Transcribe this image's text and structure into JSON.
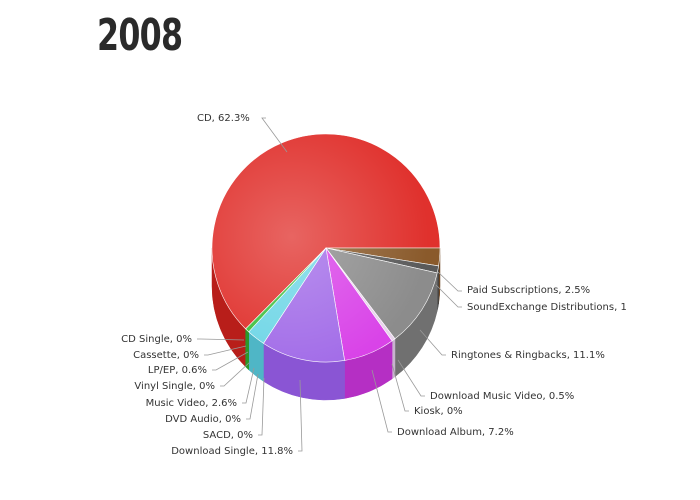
{
  "page": {
    "year_title": "2008"
  },
  "chart_data": {
    "type": "pie",
    "title": "",
    "slices": [
      {
        "label": "CD, 62.3%",
        "value": 62.3,
        "color": "#e0312d",
        "side": "#b81e1a"
      },
      {
        "label": "Paid Subscriptions, 2.5%",
        "value": 2.5,
        "color": "#8a5a2b",
        "side": "#6b4420"
      },
      {
        "label": "SoundExchange Distributions, 1",
        "value": 1.0,
        "color": "#5a5a5a",
        "side": "#444444"
      },
      {
        "label": "Ringtones & Ringbacks, 11.1%",
        "value": 11.1,
        "color": "#8c8c8c",
        "side": "#707070"
      },
      {
        "label": "Download Music Video, 0.5%",
        "value": 0.5,
        "color": "#e8d3ec",
        "side": "#c9b3cf"
      },
      {
        "label": "Kiosk, 0%",
        "value": 0.0,
        "color": "#eeeeee",
        "side": "#dddddd"
      },
      {
        "label": "Download Album, 7.2%",
        "value": 7.2,
        "color": "#d943e8",
        "side": "#b52fc4"
      },
      {
        "label": "Download Single, 11.8%",
        "value": 11.8,
        "color": "#a26ce8",
        "side": "#8a55d4"
      },
      {
        "label": "SACD, 0%",
        "value": 0.0,
        "color": "#bbbbbb",
        "side": "#999999"
      },
      {
        "label": "DVD Audio, 0%",
        "value": 0.0,
        "color": "#bbbbbb",
        "side": "#999999"
      },
      {
        "label": "Music Video, 2.6%",
        "value": 2.6,
        "color": "#6fd6e6",
        "side": "#4fb6c6"
      },
      {
        "label": "Vinyl Single, 0%",
        "value": 0.0,
        "color": "#bbbbbb",
        "side": "#999999"
      },
      {
        "label": "LP/EP, 0.6%",
        "value": 0.6,
        "color": "#3fbf3f",
        "side": "#2a9a2a"
      },
      {
        "label": "Cassette, 0%",
        "value": 0.0,
        "color": "#bbbbbb",
        "side": "#999999"
      },
      {
        "label": "CD Single, 0%",
        "value": 0.0,
        "color": "#bbbbbb",
        "side": "#999999"
      }
    ]
  }
}
